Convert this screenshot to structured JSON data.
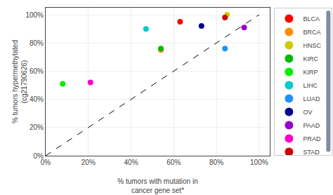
{
  "chart_data": {
    "type": "scatter",
    "x_label": "% tumors with mutation in\ncancer gene set*",
    "y_label": "% tumors hypermethylated\n(cg21790626)",
    "series": [
      {
        "type": "line",
        "line_style": "dashed",
        "color": "#000000",
        "x": [
          0,
          1.0
        ],
        "values": [
          0,
          1.0
        ]
      },
      {
        "name": "BLCA",
        "color": "#ff0000",
        "x": [
          0.63
        ],
        "values": [
          0.95
        ]
      },
      {
        "name": "BRCA",
        "color": "#ff8c00",
        "x": [
          0.54
        ],
        "values": [
          0.75
        ]
      },
      {
        "name": "HNSC",
        "color": "#cccc00",
        "x": [
          0.85
        ],
        "values": [
          1.0
        ]
      },
      {
        "name": "KIRC",
        "color": "#00bb00",
        "x": [
          0.54
        ],
        "values": [
          0.76
        ]
      },
      {
        "name": "KIRP",
        "color": "#00ee00",
        "x": [
          0.08
        ],
        "values": [
          0.51
        ]
      },
      {
        "name": "LIHC",
        "color": "#00cccc",
        "x": [
          0.47
        ],
        "values": [
          0.9
        ]
      },
      {
        "name": "LUAD",
        "color": "#1e90ff",
        "x": [
          0.84
        ],
        "values": [
          0.76
        ]
      },
      {
        "name": "OV",
        "color": "#00008b",
        "x": [
          0.73
        ],
        "values": [
          0.92
        ]
      },
      {
        "name": "PAAD",
        "color": "#9900cc",
        "x": [
          0.93
        ],
        "values": [
          0.91
        ]
      },
      {
        "name": "PRAD",
        "color": "#ff00cc",
        "x": [
          0.21
        ],
        "values": [
          0.52
        ]
      },
      {
        "name": "STAD",
        "color": "#cc0000",
        "x": [
          0.84
        ],
        "values": [
          0.98
        ]
      }
    ],
    "xlim": [
      0,
      1.05
    ],
    "ylim": [
      0,
      1.05
    ],
    "xticks": [
      {
        "value": 0,
        "label": "0%"
      },
      {
        "value": 0.2,
        "label": "20%"
      },
      {
        "value": 0.4,
        "label": "40%"
      },
      {
        "value": 0.6,
        "label": "60%"
      },
      {
        "value": 0.8,
        "label": "80%"
      },
      {
        "value": 1.0,
        "label": "100%"
      }
    ],
    "yticks": [
      {
        "value": 0,
        "label": "0%"
      },
      {
        "value": 0.2,
        "label": "20%"
      },
      {
        "value": 0.4,
        "label": "40%"
      },
      {
        "value": 0.6,
        "label": "60%"
      },
      {
        "value": 0.8,
        "label": "80%"
      },
      {
        "value": 1.0,
        "label": "100%"
      }
    ],
    "grid": true,
    "legend": "right"
  }
}
